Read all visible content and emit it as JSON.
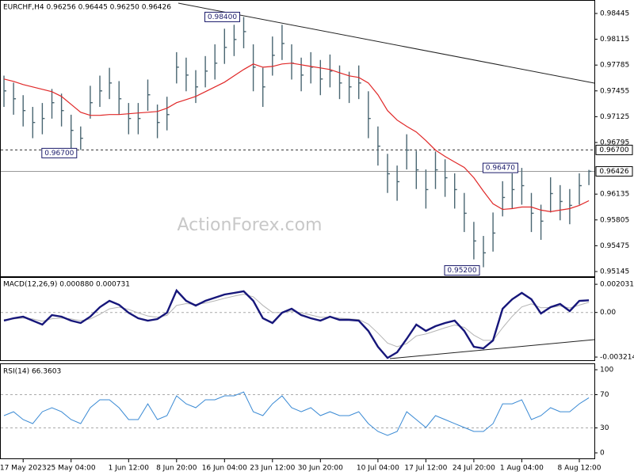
{
  "chart_data": [
    {
      "type": "ohlc",
      "title": "EURCHF,H4 0.96256 0.96445 0.96250 0.96426",
      "watermark": "ActionForex.com",
      "categories": [
        null,
        null,
        "17 May 2023",
        null,
        null,
        null,
        null,
        "25 May 04:00",
        null,
        null,
        null,
        null,
        null,
        "1 Jun 12:00",
        null,
        null,
        null,
        null,
        "8 Jun 20:00",
        null,
        null,
        null,
        null,
        "16 Jun 04:00",
        null,
        null,
        null,
        null,
        "23 Jun 12:00",
        null,
        null,
        null,
        null,
        "30 Jun 20:00",
        null,
        null,
        null,
        null,
        null,
        "10 Jul 04:00",
        null,
        null,
        null,
        null,
        "17 Jul 12:00",
        null,
        null,
        null,
        null,
        "24 Jul 20:00",
        null,
        null,
        null,
        null,
        "1 Aug 04:00",
        null,
        null,
        null,
        null,
        null,
        "8 Aug 12:00",
        null
      ],
      "high": [
        0.9765,
        0.9756,
        0.974,
        0.9725,
        0.973,
        0.9748,
        0.9742,
        0.9715,
        0.97,
        0.9752,
        0.9765,
        0.9775,
        0.9758,
        0.973,
        0.973,
        0.976,
        0.9728,
        0.9738,
        0.9795,
        0.9788,
        0.9772,
        0.979,
        0.9805,
        0.9825,
        0.983,
        0.984,
        0.9805,
        0.9775,
        0.9815,
        0.983,
        0.9805,
        0.9788,
        0.9795,
        0.9785,
        0.9792,
        0.9778,
        0.977,
        0.9778,
        0.9745,
        0.97,
        0.9665,
        0.965,
        0.969,
        0.9669,
        0.9645,
        0.9668,
        0.9658,
        0.964,
        0.9615,
        0.9578,
        0.956,
        0.959,
        0.963,
        0.964,
        0.9647,
        0.9615,
        0.96,
        0.9635,
        0.9625,
        0.962,
        0.964,
        0.96445
      ],
      "low": [
        0.9725,
        0.9715,
        0.97,
        0.9685,
        0.969,
        0.971,
        0.97,
        0.9672,
        0.967,
        0.971,
        0.9725,
        0.9735,
        0.9715,
        0.969,
        0.969,
        0.972,
        0.9685,
        0.9695,
        0.9755,
        0.9745,
        0.973,
        0.975,
        0.976,
        0.978,
        0.979,
        0.98,
        0.9745,
        0.9725,
        0.9765,
        0.9785,
        0.976,
        0.9745,
        0.9755,
        0.974,
        0.975,
        0.9735,
        0.973,
        0.9735,
        0.9685,
        0.965,
        0.9615,
        0.9605,
        0.9645,
        0.962,
        0.9595,
        0.962,
        0.961,
        0.9595,
        0.9565,
        0.953,
        0.952,
        0.954,
        0.9585,
        0.9595,
        0.96,
        0.9565,
        0.9555,
        0.959,
        0.958,
        0.9575,
        0.96,
        0.9625
      ],
      "close": [
        0.97455,
        0.97354,
        0.97203,
        0.97051,
        0.97102,
        0.97304,
        0.97203,
        0.9695,
        0.96849,
        0.97304,
        0.97455,
        0.97556,
        0.97354,
        0.97102,
        0.97102,
        0.97405,
        0.97051,
        0.97152,
        0.97758,
        0.97657,
        0.97506,
        0.97708,
        0.97809,
        0.98011,
        0.98112,
        0.98213,
        0.97758,
        0.97506,
        0.9791,
        0.98061,
        0.97809,
        0.97657,
        0.97758,
        0.97607,
        0.97708,
        0.97556,
        0.97506,
        0.97556,
        0.97102,
        0.96748,
        0.96395,
        0.96294,
        0.96698,
        0.96445,
        0.96193,
        0.96445,
        0.96344,
        0.96193,
        0.9589,
        0.95536,
        0.95384,
        0.95637,
        0.96092,
        0.96193,
        0.96243,
        0.9589,
        0.95789,
        0.96142,
        0.96041,
        0.95991,
        0.96243,
        0.96426
      ],
      "color": "#4a6672",
      "ma": {
        "color": "#e02828",
        "values": [
          0.97607,
          0.97576,
          0.97536,
          0.97506,
          0.97475,
          0.97445,
          0.97384,
          0.97283,
          0.97182,
          0.97142,
          0.97142,
          0.97152,
          0.97152,
          0.97162,
          0.97172,
          0.97182,
          0.97192,
          0.97233,
          0.97304,
          0.97344,
          0.97384,
          0.97445,
          0.97506,
          0.97566,
          0.97647,
          0.97728,
          0.97799,
          0.97758,
          0.97768,
          0.97799,
          0.97809,
          0.97789,
          0.97768,
          0.97748,
          0.97728,
          0.97687,
          0.97647,
          0.97627,
          0.97556,
          0.97405,
          0.97203,
          0.97081,
          0.97001,
          0.9693,
          0.96819,
          0.96698,
          0.96617,
          0.96546,
          0.96476,
          0.96344,
          0.96172,
          0.96011,
          0.9594,
          0.9595,
          0.9597,
          0.9597,
          0.9593,
          0.9591,
          0.9593,
          0.9595,
          0.95991,
          0.96051
        ]
      },
      "ylim": [
        0.95074,
        0.98617
      ],
      "yticks": [
        0.98445,
        0.98115,
        0.97785,
        0.97455,
        0.97125,
        0.96795,
        0.96135,
        0.95805,
        0.95475,
        0.95145
      ],
      "hlines": [
        {
          "value": 0.967,
          "label": "0.96700",
          "style": "dashed"
        },
        {
          "value": 0.96426,
          "label": "0.96426",
          "style": "solid"
        }
      ],
      "annotations": [
        {
          "value": 0.984,
          "label": "0.98400"
        },
        {
          "value": 0.967,
          "label": "0.96700"
        },
        {
          "value": 0.9647,
          "label": "0.96470"
        },
        {
          "value": 0.952,
          "label": "0.95200"
        }
      ]
    },
    {
      "type": "macd",
      "title": "MACD(12,26,9) 0.000880 0.000731",
      "macd": {
        "color": "#16167a",
        "values": [
          -0.000588,
          -0.000417,
          -0.000303,
          -0.000588,
          -0.000874,
          -0.000188,
          -0.000303,
          -0.000588,
          -0.000759,
          -0.000303,
          0.000383,
          0.000839,
          0.000554,
          -1.7e-05,
          -0.000417,
          -0.000588,
          -0.000474,
          -1.7e-05,
          0.001587,
          0.000839,
          0.000497,
          0.000839,
          0.001068,
          0.001296,
          0.00141,
          0.00153,
          0.000839,
          -0.000417,
          -0.000759,
          -1.7e-05,
          0.000268,
          -0.000188,
          -0.000417,
          -0.000588,
          -0.000303,
          -0.000531,
          -0.000531,
          -0.000588,
          -0.00133,
          -0.002472,
          -0.003272,
          -0.002872,
          -0.001902,
          -0.000874,
          -0.00133,
          -0.000988,
          -0.000759,
          -0.000588,
          -0.00133,
          -0.002472,
          -0.002587,
          -0.002015,
          0.000268,
          0.000953,
          0.00141,
          0.000953,
          -7.4e-05,
          0.000383,
          0.000611,
          9.7e-05,
          0.000839,
          0.00088
        ]
      },
      "signal": {
        "color": "#b4b4b4",
        "values": [
          -0.0005,
          -0.00047,
          -0.0004,
          -0.00047,
          -0.00063,
          -0.00045,
          -0.0004,
          -0.00047,
          -0.00059,
          -0.00047,
          -0.00013,
          0.00026,
          0.00038,
          0.00022,
          -3e-05,
          -0.00025,
          -0.00034,
          -0.00021,
          0.00051,
          0.00064,
          0.00058,
          0.00068,
          0.00084,
          0.00102,
          0.00118,
          0.00132,
          0.00113,
          0.00051,
          0.0,
          -1e-05,
          0.0001,
          -2e-05,
          -0.00018,
          -0.00034,
          -0.00033,
          -0.00041,
          -0.00046,
          -0.00051,
          -0.00084,
          -0.00149,
          -0.0022,
          -0.00247,
          -0.00224,
          -0.00169,
          -0.00155,
          -0.00133,
          -0.0011,
          -0.0009,
          -0.00107,
          -0.00163,
          -0.00201,
          -0.00201,
          -0.0011,
          -0.00028,
          0.0004,
          0.00062,
          0.00034,
          0.00036,
          0.00046,
          0.00032,
          0.00053,
          0.000731
        ]
      },
      "ylim": [
        -0.00344,
        0.00255
      ],
      "yticks": [
        0.002031,
        {
          "value": 0,
          "label": "0.00"
        },
        -0.003214
      ],
      "levels": [
        0
      ]
    },
    {
      "type": "rsi",
      "title": "RSI(14) 66.3603",
      "color": "#3a8ad4",
      "values": [
        44.8,
        49.5,
        40.0,
        35.2,
        49.5,
        54.3,
        49.5,
        40.0,
        35.2,
        54.3,
        63.8,
        63.8,
        54.3,
        40.0,
        40.0,
        59.0,
        40.0,
        44.8,
        68.6,
        59.0,
        54.3,
        63.8,
        63.8,
        68.6,
        68.6,
        73.3,
        49.5,
        44.8,
        59.0,
        68.6,
        54.3,
        49.5,
        54.3,
        44.8,
        49.5,
        44.8,
        44.8,
        49.5,
        35.2,
        25.7,
        21.0,
        25.7,
        49.5,
        40.0,
        30.5,
        44.8,
        40.0,
        35.2,
        30.5,
        25.7,
        25.7,
        35.2,
        59.0,
        59.0,
        63.8,
        40.0,
        44.8,
        54.3,
        49.5,
        49.5,
        59.0,
        66.3603
      ],
      "ylim": [
        -7.6,
        106.7
      ],
      "yticks": [
        100,
        70,
        30,
        0
      ],
      "levels": [
        70,
        30
      ]
    }
  ]
}
